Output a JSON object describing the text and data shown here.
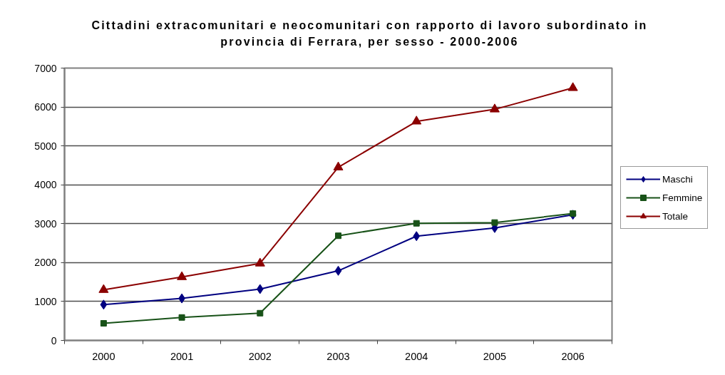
{
  "chart_data": {
    "type": "line",
    "title": "Cittadini extracomunitari e neocomunitari con rapporto di lavoro subordinato in provincia di Ferrara, per sesso - 2000-2006",
    "categories": [
      "2000",
      "2001",
      "2002",
      "2003",
      "2004",
      "2005",
      "2006"
    ],
    "series": [
      {
        "name": "Maschi",
        "color": "#000080",
        "marker": "diamond",
        "values": [
          920,
          1080,
          1320,
          1790,
          2680,
          2890,
          3230
        ]
      },
      {
        "name": "Femmine",
        "color": "#185218",
        "marker": "square",
        "values": [
          440,
          590,
          700,
          2690,
          3010,
          3030,
          3260
        ]
      },
      {
        "name": "Totale",
        "color": "#8b0000",
        "marker": "triangle",
        "values": [
          1300,
          1630,
          1980,
          4450,
          5630,
          5940,
          6490
        ]
      }
    ],
    "ylim": [
      0,
      7000
    ],
    "yticks": [
      0,
      1000,
      2000,
      3000,
      4000,
      5000,
      6000,
      7000
    ],
    "grid": "y",
    "legend": "right",
    "line_style": "solid"
  }
}
